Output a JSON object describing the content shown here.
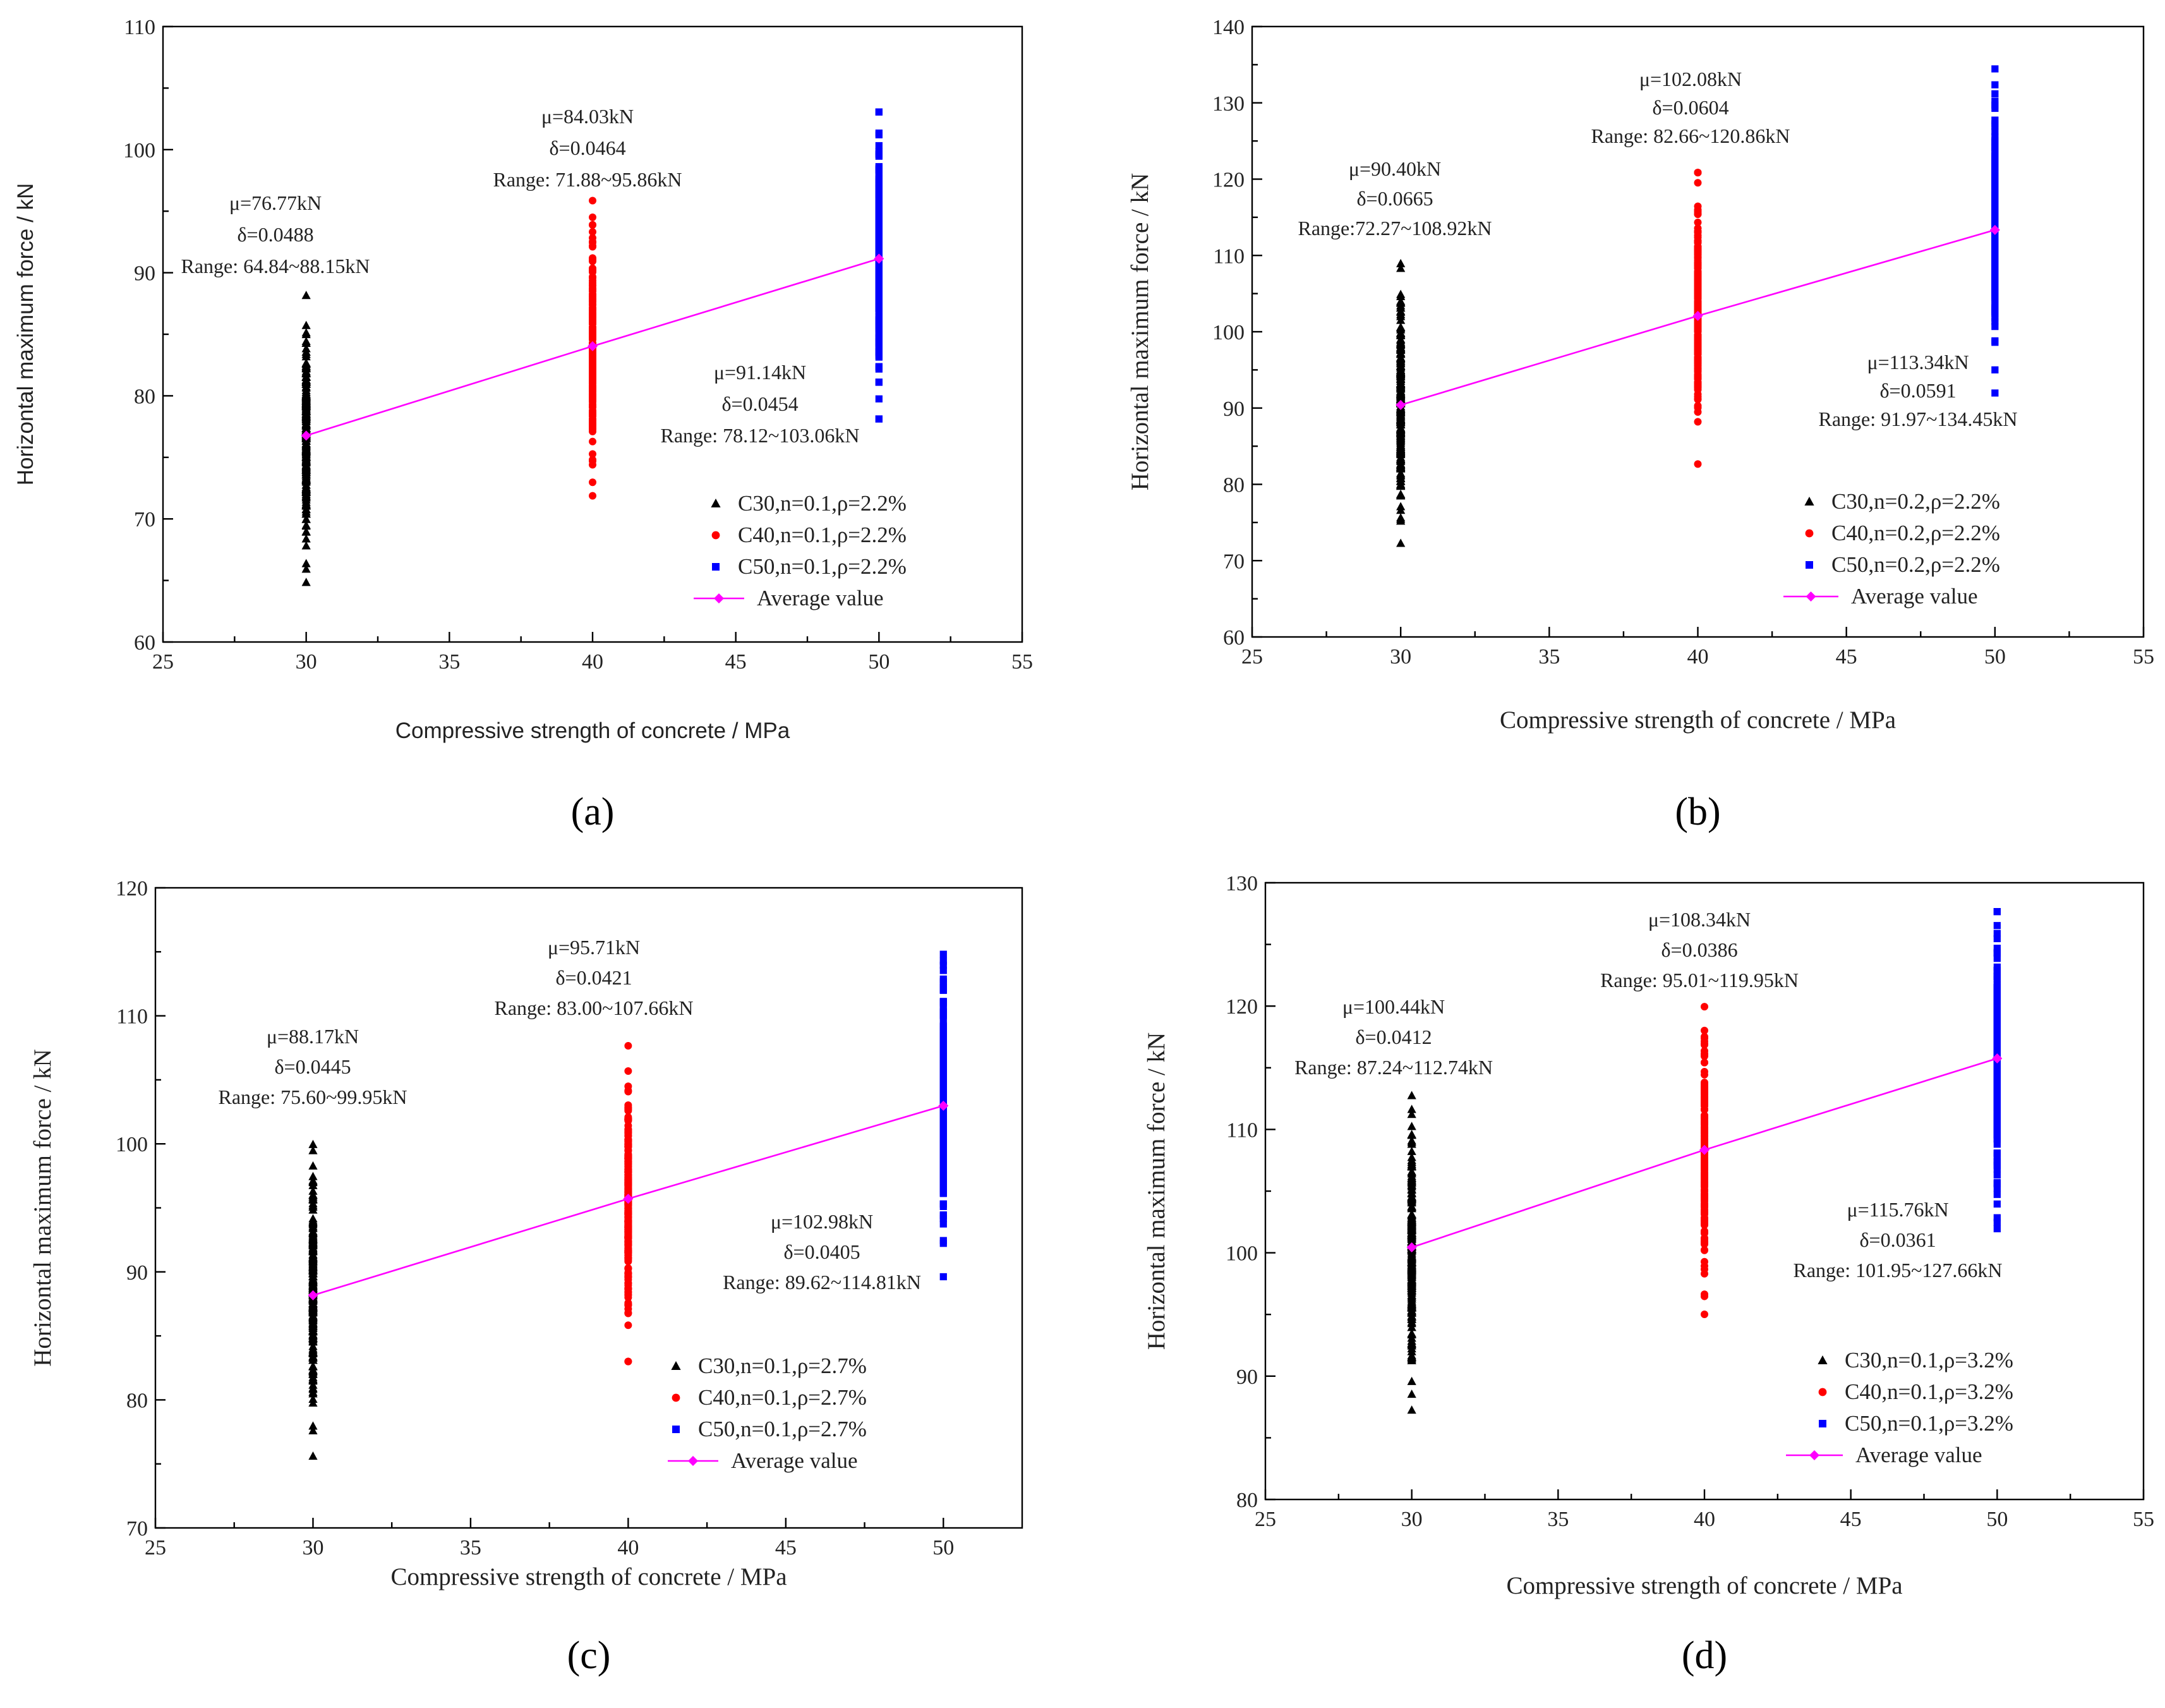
{
  "figure": {
    "background": "#ffffff"
  },
  "colors": {
    "c30": "#000000",
    "c40": "#ff0000",
    "c50": "#0000ff",
    "avg": "#ff00ff"
  },
  "icons": {
    "c30": "triangle-marker",
    "c40": "circle-marker",
    "c50": "square-marker",
    "avg": "diamond-marker"
  },
  "chart_data": [
    {
      "type": "scatter",
      "panel_label": "(a)",
      "xlabel": "Compressive strength of concrete / MPa",
      "ylabel": "Horizontal maximum force / kN",
      "xlim": [
        25,
        55
      ],
      "ylim": [
        60,
        110
      ],
      "xticks": [
        25,
        30,
        35,
        40,
        45,
        50,
        55
      ],
      "yticks": [
        60,
        70,
        80,
        90,
        100,
        110
      ],
      "series": [
        {
          "name": "C30,n=0.1,ρ=2.2%",
          "x": 30,
          "mean": 76.77,
          "cov": 0.0488,
          "min": 64.84,
          "max": 88.15,
          "annotation": [
            "μ=76.77kN",
            "δ=0.0488",
            "Range: 64.84~88.15kN"
          ]
        },
        {
          "name": "C40,n=0.1,ρ=2.2%",
          "x": 40,
          "mean": 84.03,
          "cov": 0.0464,
          "min": 71.88,
          "max": 95.86,
          "annotation": [
            "μ=84.03kN",
            "δ=0.0464",
            "Range: 71.88~95.86kN"
          ]
        },
        {
          "name": "C50,n=0.1,ρ=2.2%",
          "x": 50,
          "mean": 91.14,
          "cov": 0.0454,
          "min": 78.12,
          "max": 103.06,
          "annotation": [
            "μ=91.14kN",
            "δ=0.0454",
            "Range: 78.12~103.06kN"
          ]
        }
      ],
      "average": {
        "name": "Average value",
        "x": [
          30,
          40,
          50
        ],
        "y": [
          76.77,
          84.03,
          91.14
        ]
      },
      "legend": {
        "position": "bottom-right"
      }
    },
    {
      "type": "scatter",
      "panel_label": "(b)",
      "xlabel": "Compressive strength of concrete / MPa",
      "ylabel": "Horizontal maximum force / kN",
      "xlim": [
        25,
        55
      ],
      "ylim": [
        60,
        140
      ],
      "xticks": [
        25,
        30,
        35,
        40,
        45,
        50,
        55
      ],
      "yticks": [
        60,
        70,
        80,
        90,
        100,
        110,
        120,
        130,
        140
      ],
      "series": [
        {
          "name": "C30,n=0.2,ρ=2.2%",
          "x": 30,
          "mean": 90.4,
          "cov": 0.0665,
          "min": 72.27,
          "max": 108.92,
          "annotation": [
            "μ=90.40kN",
            "δ=0.0665",
            "Range:72.27~108.92kN"
          ]
        },
        {
          "name": "C40,n=0.2,ρ=2.2%",
          "x": 40,
          "mean": 102.08,
          "cov": 0.0604,
          "min": 82.66,
          "max": 120.86,
          "annotation": [
            "μ=102.08kN",
            "δ=0.0604",
            "Range: 82.66~120.86kN"
          ]
        },
        {
          "name": "C50,n=0.2,ρ=2.2%",
          "x": 50,
          "mean": 113.34,
          "cov": 0.0591,
          "min": 91.97,
          "max": 134.45,
          "annotation": [
            "μ=113.34kN",
            "δ=0.0591",
            "Range: 91.97~134.45kN"
          ]
        }
      ],
      "average": {
        "name": "Average value",
        "x": [
          30,
          40,
          50
        ],
        "y": [
          90.4,
          102.08,
          113.34
        ]
      },
      "legend": {
        "position": "bottom-right"
      }
    },
    {
      "type": "scatter",
      "panel_label": "(c)",
      "xlabel": "Compressive strength of concrete / MPa",
      "ylabel": "Horizontal maximum force / kN",
      "xlim": [
        25,
        52.5
      ],
      "ylim": [
        70,
        120
      ],
      "xticks": [
        25,
        30,
        35,
        40,
        45,
        50
      ],
      "yticks": [
        70,
        80,
        90,
        100,
        110,
        120
      ],
      "series": [
        {
          "name": "C30,n=0.1,ρ=2.7%",
          "x": 30,
          "mean": 88.17,
          "cov": 0.0445,
          "min": 75.6,
          "max": 99.95,
          "annotation": [
            "μ=88.17kN",
            "δ=0.0445",
            "Range: 75.60~99.95kN"
          ]
        },
        {
          "name": "C40,n=0.1,ρ=2.7%",
          "x": 40,
          "mean": 95.71,
          "cov": 0.0421,
          "min": 83.0,
          "max": 107.66,
          "annotation": [
            "μ=95.71kN",
            "δ=0.0421",
            "Range: 83.00~107.66kN"
          ]
        },
        {
          "name": "C50,n=0.1,ρ=2.7%",
          "x": 50,
          "mean": 102.98,
          "cov": 0.0405,
          "min": 89.62,
          "max": 114.81,
          "annotation": [
            "μ=102.98kN",
            "δ=0.0405",
            "Range: 89.62~114.81kN"
          ]
        }
      ],
      "average": {
        "name": "Average value",
        "x": [
          30,
          40,
          50
        ],
        "y": [
          88.17,
          95.71,
          102.98
        ]
      },
      "legend": {
        "position": "bottom-right"
      }
    },
    {
      "type": "scatter",
      "panel_label": "(d)",
      "xlabel": "Compressive strength of concrete / MPa",
      "ylabel": "Horizontal maximum force / kN",
      "xlim": [
        25,
        55
      ],
      "ylim": [
        80,
        130
      ],
      "xticks": [
        25,
        30,
        35,
        40,
        45,
        50,
        55
      ],
      "yticks": [
        80,
        90,
        100,
        110,
        120,
        130
      ],
      "series": [
        {
          "name": "C30,n=0.1,ρ=3.2%",
          "x": 30,
          "mean": 100.44,
          "cov": 0.0412,
          "min": 87.24,
          "max": 112.74,
          "annotation": [
            "μ=100.44kN",
            "δ=0.0412",
            "Range: 87.24~112.74kN"
          ]
        },
        {
          "name": "C40,n=0.1,ρ=3.2%",
          "x": 40,
          "mean": 108.34,
          "cov": 0.0386,
          "min": 95.01,
          "max": 119.95,
          "annotation": [
            "μ=108.34kN",
            "δ=0.0386",
            "Range: 95.01~119.95kN"
          ]
        },
        {
          "name": "C50,n=0.1,ρ=3.2%",
          "x": 50,
          "mean": 115.76,
          "cov": 0.0361,
          "min": 101.95,
          "max": 127.66,
          "annotation": [
            "μ=115.76kN",
            "δ=0.0361",
            "Range: 101.95~127.66kN"
          ]
        }
      ],
      "average": {
        "name": "Average value",
        "x": [
          30,
          40,
          50
        ],
        "y": [
          100.44,
          108.34,
          115.76
        ]
      },
      "legend": {
        "position": "bottom-right"
      }
    }
  ]
}
